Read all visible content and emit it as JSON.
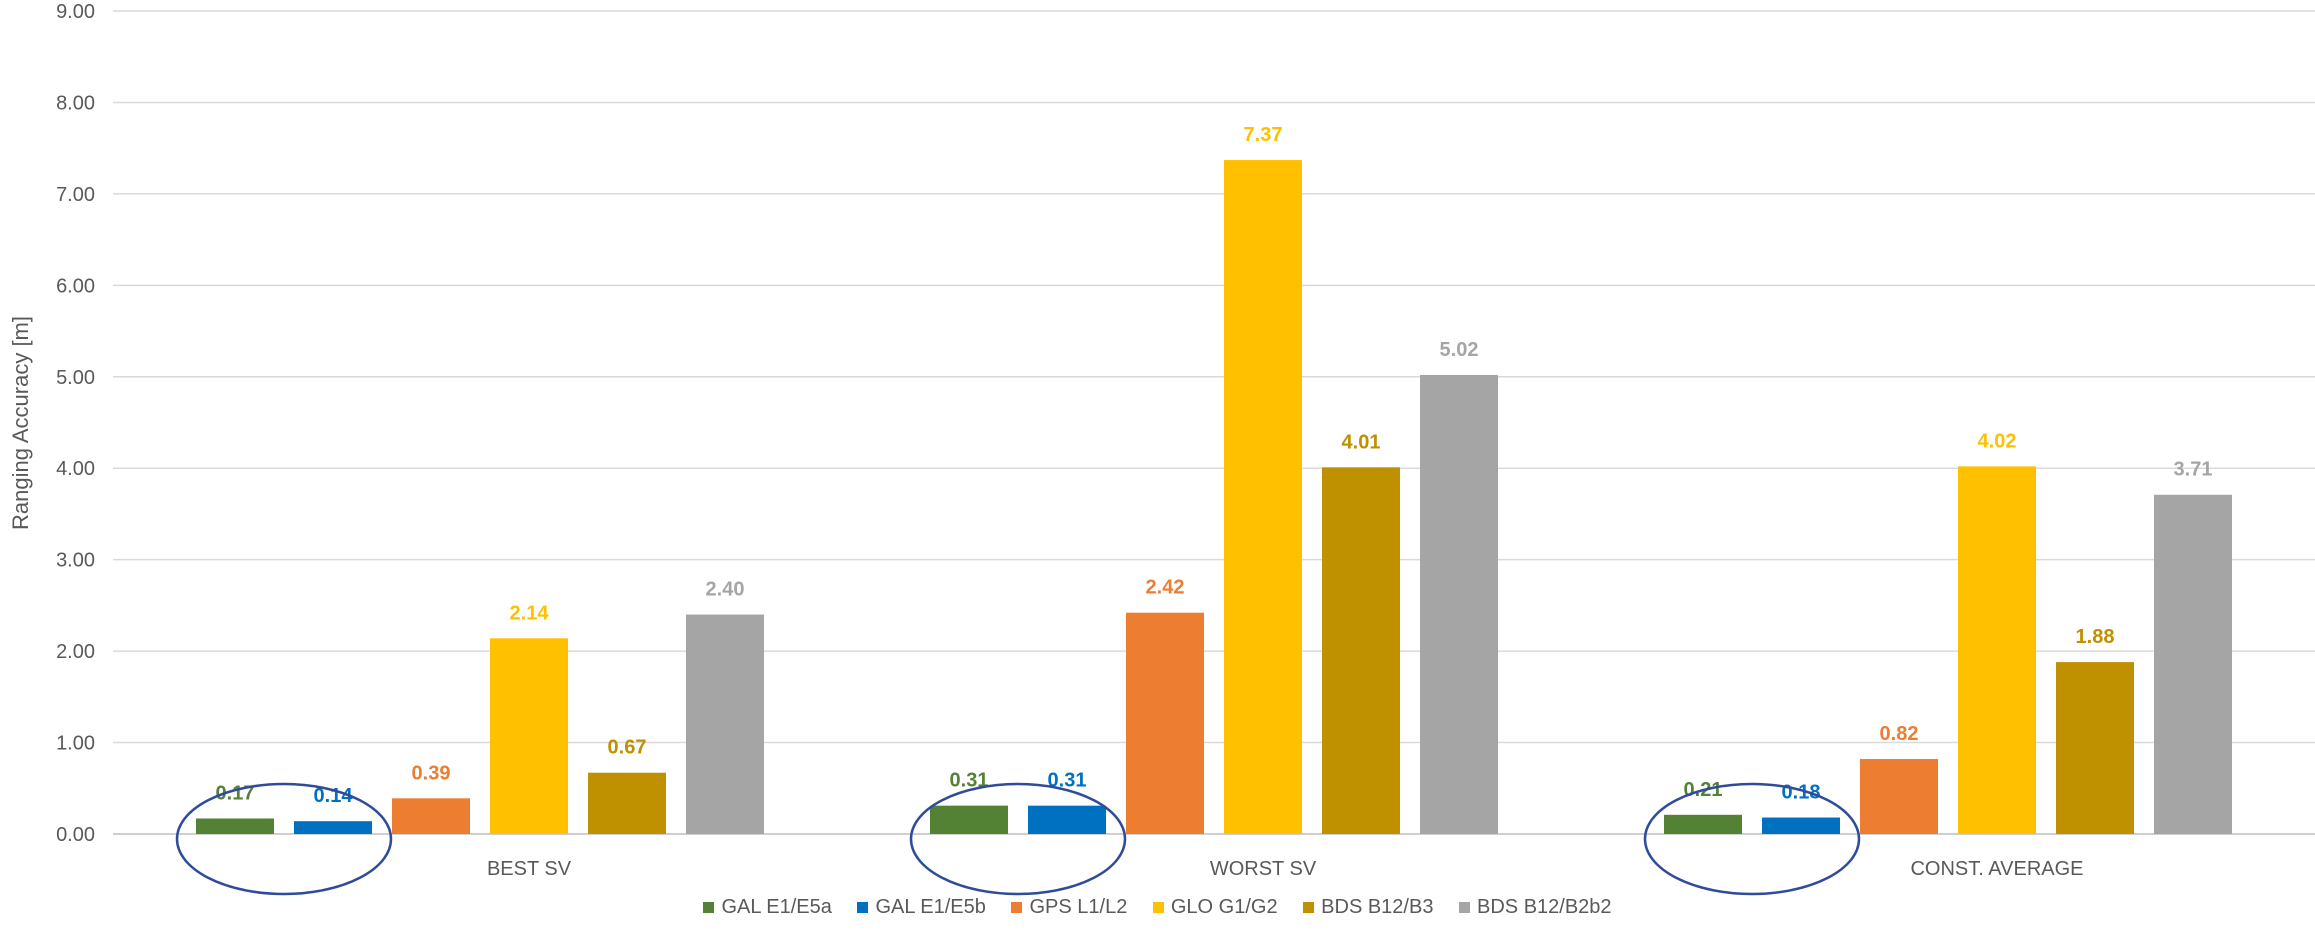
{
  "chart_data": {
    "type": "bar",
    "ylabel": "Ranging Accuracy [m]",
    "xlabel": "",
    "ylim": [
      0,
      9
    ],
    "yticks": [
      "0.00",
      "1.00",
      "2.00",
      "3.00",
      "4.00",
      "5.00",
      "6.00",
      "7.00",
      "8.00",
      "9.00"
    ],
    "grid": true,
    "legend_position": "bottom",
    "categories": [
      "BEST SV",
      "WORST SV",
      "CONST. AVERAGE"
    ],
    "series": [
      {
        "name": "GAL E1/E5a",
        "color": "#548235",
        "values": [
          0.17,
          0.31,
          0.21
        ],
        "labels": [
          "0.17",
          "0.31",
          "0.21"
        ]
      },
      {
        "name": "GAL E1/E5b",
        "color": "#0070C0",
        "values": [
          0.14,
          0.31,
          0.18
        ],
        "labels": [
          "0.14",
          "0.31",
          "0.18"
        ]
      },
      {
        "name": "GPS L1/L2",
        "color": "#ED7D31",
        "values": [
          0.39,
          2.42,
          0.82
        ],
        "labels": [
          "0.39",
          "2.42",
          "0.82"
        ]
      },
      {
        "name": "GLO G1/G2",
        "color": "#FFC000",
        "values": [
          2.14,
          7.37,
          4.02
        ],
        "labels": [
          "2.14",
          "7.37",
          "4.02"
        ]
      },
      {
        "name": "BDS B12/B3",
        "color": "#BF9000",
        "values": [
          0.67,
          4.01,
          1.88
        ],
        "labels": [
          "0.67",
          "4.01",
          "1.88"
        ]
      },
      {
        "name": "BDS B12/B2b2",
        "color": "#A5A5A5",
        "values": [
          2.4,
          5.02,
          3.71
        ],
        "labels": [
          "2.40",
          "5.02",
          "3.71"
        ]
      }
    ],
    "annotations": "ellipses circling the GAL E1/E5a and GAL E1/E5b bars in each group",
    "annotation_color": "#2F4B9A"
  },
  "legend": {
    "items": [
      {
        "label": "GAL E1/E5a",
        "color": "#548235"
      },
      {
        "label": "GAL E1/E5b",
        "color": "#0070C0"
      },
      {
        "label": "GPS L1/L2",
        "color": "#ED7D31"
      },
      {
        "label": "GLO G1/G2",
        "color": "#FFC000"
      },
      {
        "label": "BDS B12/B3",
        "color": "#BF9000"
      },
      {
        "label": "BDS B12/B2b2",
        "color": "#A5A5A5"
      }
    ]
  }
}
